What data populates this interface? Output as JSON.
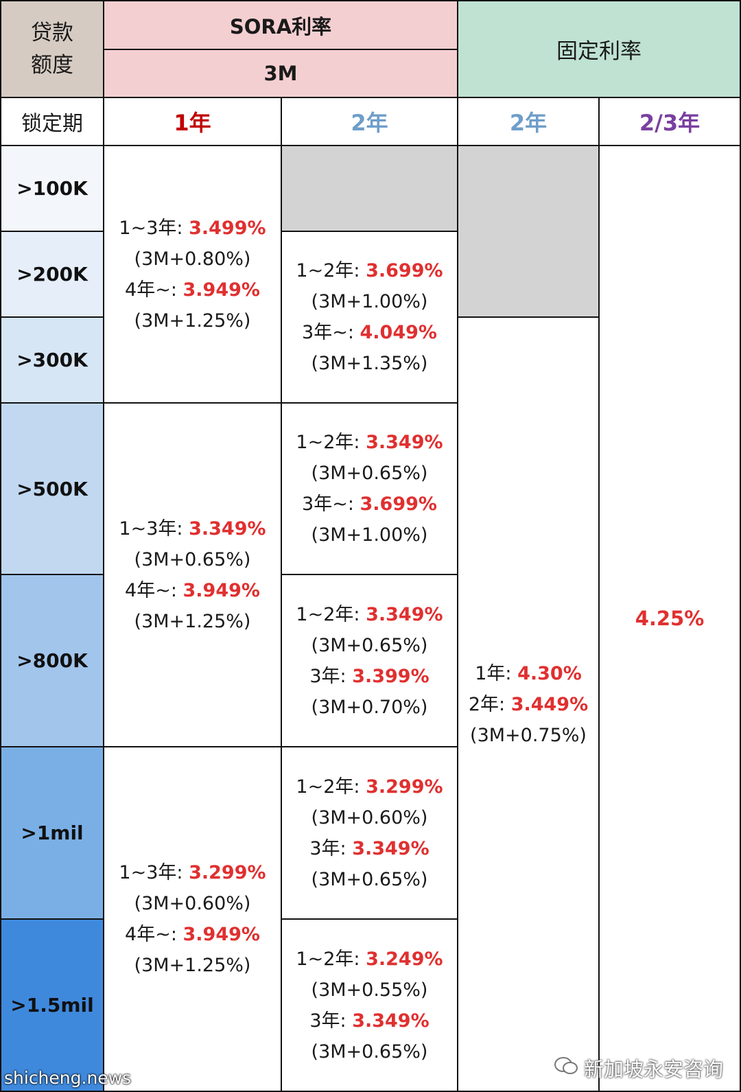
{
  "headers": {
    "loan_amount": [
      "贷款",
      "额度"
    ],
    "sora": "SORA利率",
    "sora_sub": "3M",
    "fixed": "固定利率",
    "lock_period": "锁定期",
    "periods": [
      "1年",
      "2年",
      "2年",
      "2/3年"
    ]
  },
  "amounts": [
    ">100K",
    ">200K",
    ">300K",
    ">500K",
    ">800K",
    ">1mil",
    ">1.5mil"
  ],
  "sora_1y": [
    {
      "a_label": "1~3年: ",
      "a_rate": "3.499%",
      "a_spread": "(3M+0.80%)",
      "b_label": "4年~: ",
      "b_rate": "3.949%",
      "b_spread": "(3M+1.25%)"
    },
    {
      "a_label": "1~3年: ",
      "a_rate": "3.349%",
      "a_spread": "(3M+0.65%)",
      "b_label": "4年~: ",
      "b_rate": "3.949%",
      "b_spread": "(3M+1.25%)"
    },
    {
      "a_label": "1~3年: ",
      "a_rate": "3.299%",
      "a_spread": "(3M+0.60%)",
      "b_label": "4年~: ",
      "b_rate": "3.949%",
      "b_spread": "(3M+1.25%)"
    }
  ],
  "sora_2y": [
    {
      "a_label": "1~2年: ",
      "a_rate": "3.699%",
      "a_spread": "(3M+1.00%)",
      "b_label": "3年~: ",
      "b_rate": "4.049%",
      "b_spread": "(3M+1.35%)"
    },
    {
      "a_label": "1~2年: ",
      "a_rate": "3.349%",
      "a_spread": "(3M+0.65%)",
      "b_label": "3年~: ",
      "b_rate": "3.699%",
      "b_spread": "(3M+1.00%)"
    },
    {
      "a_label": "1~2年: ",
      "a_rate": "3.349%",
      "a_spread": "(3M+0.65%)",
      "b_label": "3年: ",
      "b_rate": "3.399%",
      "b_spread": "(3M+0.70%)"
    },
    {
      "a_label": "1~2年: ",
      "a_rate": "3.299%",
      "a_spread": "(3M+0.60%)",
      "b_label": "3年: ",
      "b_rate": "3.349%",
      "b_spread": "(3M+0.65%)"
    },
    {
      "a_label": "1~2年: ",
      "a_rate": "3.249%",
      "a_spread": "(3M+0.55%)",
      "b_label": "3年: ",
      "b_rate": "3.349%",
      "b_spread": "(3M+0.65%)"
    }
  ],
  "fixed_2y": {
    "a_label": "1年: ",
    "a_rate": "4.30%",
    "b_label": "2年: ",
    "b_rate": "3.449%",
    "b_spread": "(3M+0.75%)"
  },
  "fixed_23y": "4.25%",
  "watermark_left": "shicheng.news",
  "watermark_right": "新加坡永安咨询",
  "colors": {
    "header_pink": "#f4cfd1",
    "header_green": "#bfe2d2",
    "header_beige": "#d6cbc2",
    "period_red": "#c00000",
    "period_blue": "#6e9ec9",
    "period_purple": "#7a3fa0",
    "rate_red": "#e03030",
    "amount_gradient": [
      "#f3f7fc",
      "#e5eef9",
      "#d7e6f5",
      "#c1d8f0",
      "#a2c5ec",
      "#7aafe6",
      "#3f89dd"
    ]
  }
}
